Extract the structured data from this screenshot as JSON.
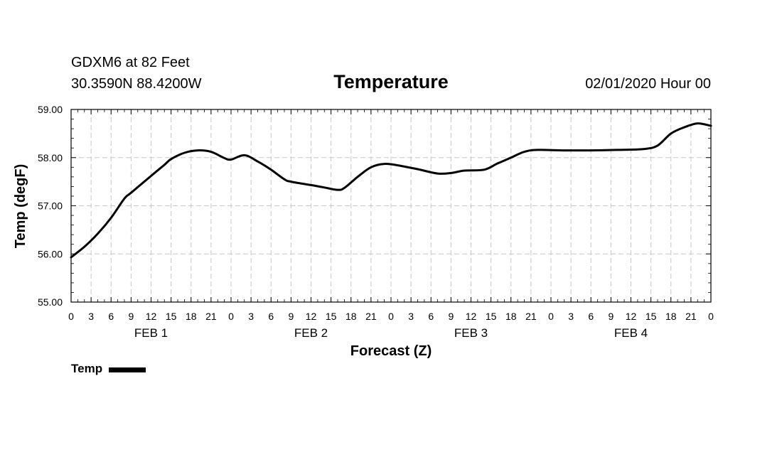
{
  "header": {
    "station": "GDXM6 at 82 Feet",
    "coords": "30.3590N 88.4200W",
    "timestamp": "02/01/2020 Hour 00"
  },
  "chart_data": {
    "type": "line",
    "title": "Temperature",
    "xlabel": "Forecast (Z)",
    "ylabel": "Temp (degF)",
    "x_unit": "forecast hour",
    "xlim": [
      0,
      96
    ],
    "ylim": [
      55,
      59
    ],
    "grid": true,
    "legend_placement": "bottom-left",
    "y_ticks": [
      "55.00",
      "56.00",
      "57.00",
      "58.00",
      "59.00"
    ],
    "y_tick_values": [
      55,
      56,
      57,
      58,
      59
    ],
    "x_tick_labels": [
      "0",
      "3",
      "6",
      "9",
      "12",
      "15",
      "18",
      "21",
      "0",
      "3",
      "6",
      "9",
      "12",
      "15",
      "18",
      "21",
      "0",
      "3",
      "6",
      "9",
      "12",
      "15",
      "18",
      "21",
      "0",
      "3",
      "6",
      "9",
      "12",
      "15",
      "18",
      "21",
      "0"
    ],
    "day_labels": [
      {
        "label": "FEB 1",
        "center_hour": 12
      },
      {
        "label": "FEB 2",
        "center_hour": 36
      },
      {
        "label": "FEB 3",
        "center_hour": 60
      },
      {
        "label": "FEB 4",
        "center_hour": 84
      }
    ],
    "series": [
      {
        "name": "Temp",
        "color": "#000000",
        "points": [
          [
            0,
            55.93
          ],
          [
            2,
            56.15
          ],
          [
            4,
            56.42
          ],
          [
            6,
            56.75
          ],
          [
            8,
            57.15
          ],
          [
            9,
            57.27
          ],
          [
            12,
            57.62
          ],
          [
            14,
            57.85
          ],
          [
            15,
            57.97
          ],
          [
            17,
            58.1
          ],
          [
            19,
            58.15
          ],
          [
            21,
            58.12
          ],
          [
            23,
            57.99
          ],
          [
            24,
            57.96
          ],
          [
            26,
            58.05
          ],
          [
            28,
            57.92
          ],
          [
            30,
            57.75
          ],
          [
            32,
            57.55
          ],
          [
            33,
            57.5
          ],
          [
            36,
            57.43
          ],
          [
            38,
            57.38
          ],
          [
            40,
            57.33
          ],
          [
            41,
            57.37
          ],
          [
            43,
            57.6
          ],
          [
            45,
            57.8
          ],
          [
            47,
            57.87
          ],
          [
            49,
            57.84
          ],
          [
            52,
            57.76
          ],
          [
            55,
            57.67
          ],
          [
            57,
            57.68
          ],
          [
            59,
            57.73
          ],
          [
            62,
            57.75
          ],
          [
            64,
            57.88
          ],
          [
            66,
            58.0
          ],
          [
            68,
            58.12
          ],
          [
            70,
            58.16
          ],
          [
            74,
            58.15
          ],
          [
            78,
            58.15
          ],
          [
            82,
            58.16
          ],
          [
            86,
            58.18
          ],
          [
            88,
            58.25
          ],
          [
            90,
            58.5
          ],
          [
            92,
            58.63
          ],
          [
            94,
            58.71
          ],
          [
            96,
            58.66
          ]
        ]
      }
    ]
  }
}
